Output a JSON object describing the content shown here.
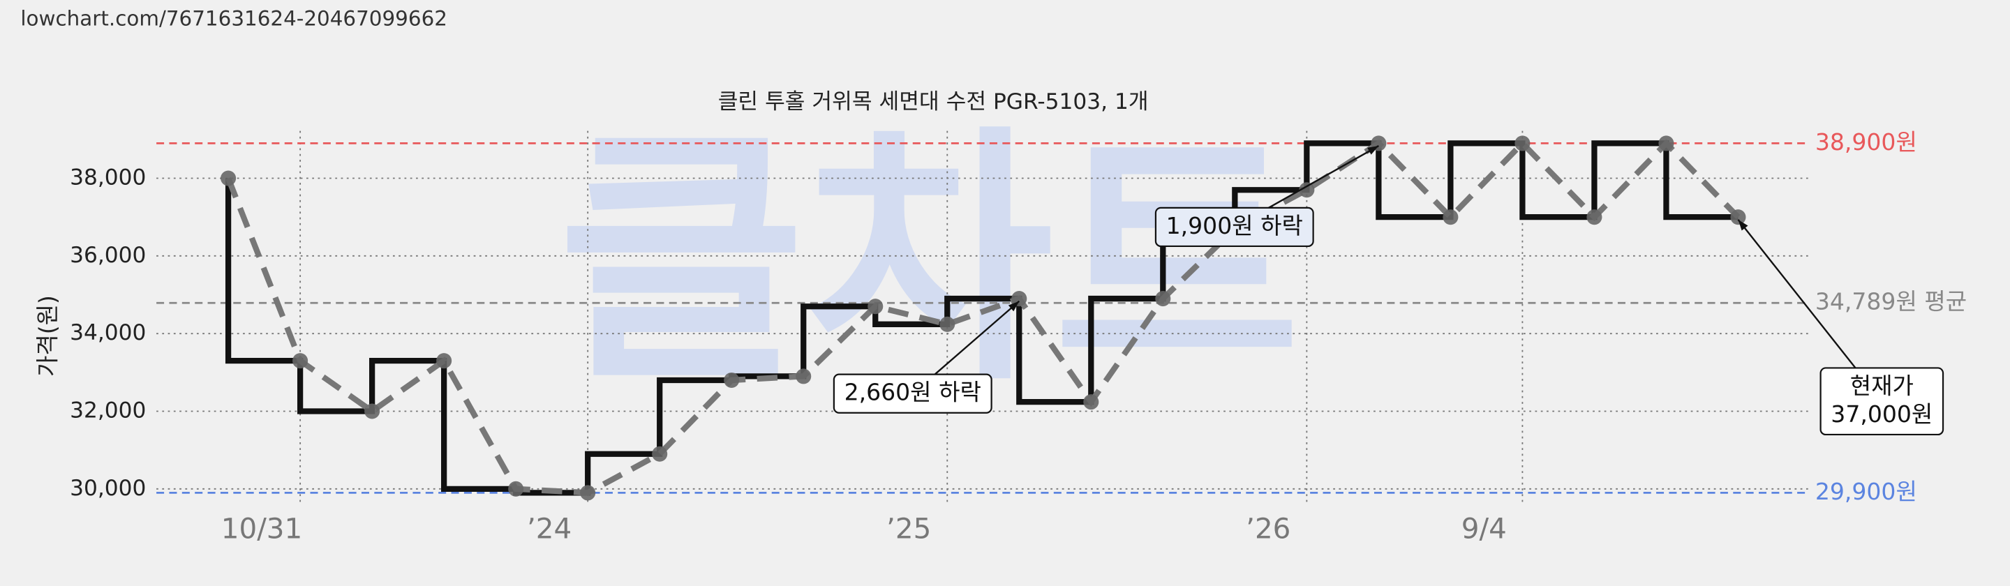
{
  "source": "lowchart.com/7671631624-20467099662",
  "watermark": "클차트",
  "chart_data": {
    "type": "line",
    "title": "클린 투홀 거위목 세면대 수전 PGR-5103, 1개",
    "y_label": "가격(원)",
    "x": [
      0,
      1,
      2,
      3,
      4,
      5,
      6,
      7,
      8,
      9,
      10,
      11,
      12,
      13,
      14,
      15,
      16,
      17,
      18,
      19,
      20,
      21
    ],
    "series": [
      {
        "color": "#111111",
        "style": "step",
        "values": [
          38000,
          33300,
          32000,
          33300,
          30000,
          29900,
          30900,
          32800,
          32900,
          34700,
          34240,
          34900,
          32240,
          34900,
          36700,
          37700,
          38900,
          37000,
          38900,
          37000,
          38900,
          37000
        ]
      },
      {
        "color": "#777777",
        "style": "dashed",
        "values": [
          38000,
          33300,
          32000,
          33300,
          30000,
          29900,
          30900,
          32800,
          32900,
          34700,
          34240,
          34900,
          32240,
          34900,
          36700,
          37700,
          38900,
          37000,
          38900,
          37000,
          38900,
          37000
        ]
      }
    ],
    "xlim": [
      -1,
      22
    ],
    "xticks": [
      {
        "value": 1,
        "label": "10/31"
      },
      {
        "value": 5,
        "label": "’24"
      },
      {
        "value": 10,
        "label": "’25"
      },
      {
        "value": 15,
        "label": "’26"
      },
      {
        "value": 18,
        "label": "9/4"
      }
    ],
    "ylim": [
      29650,
      39450
    ],
    "yticks": [
      {
        "value": 30000,
        "label": "30,000"
      },
      {
        "value": 32000,
        "label": "32,000"
      },
      {
        "value": 34000,
        "label": "34,000"
      },
      {
        "value": 36000,
        "label": "36,000"
      },
      {
        "value": 38000,
        "label": "38,000"
      }
    ],
    "grid": true,
    "reference_lines": [
      {
        "value": 38900,
        "label": "38,900원",
        "color": "#e8585a"
      },
      {
        "value": 34789,
        "label": "34,789원 평균",
        "color": "#888888"
      },
      {
        "value": 29900,
        "label": "29,900원",
        "color": "#5b84e0"
      }
    ],
    "annotations": [
      {
        "lines": [
          "1,900원 하락"
        ],
        "fill": "#e6ecf7"
      },
      {
        "lines": [
          "2,660원 하락"
        ],
        "fill": "#ffffff"
      },
      {
        "lines": [
          "현재가",
          "37,000원"
        ],
        "fill": "#ffffff"
      }
    ]
  }
}
